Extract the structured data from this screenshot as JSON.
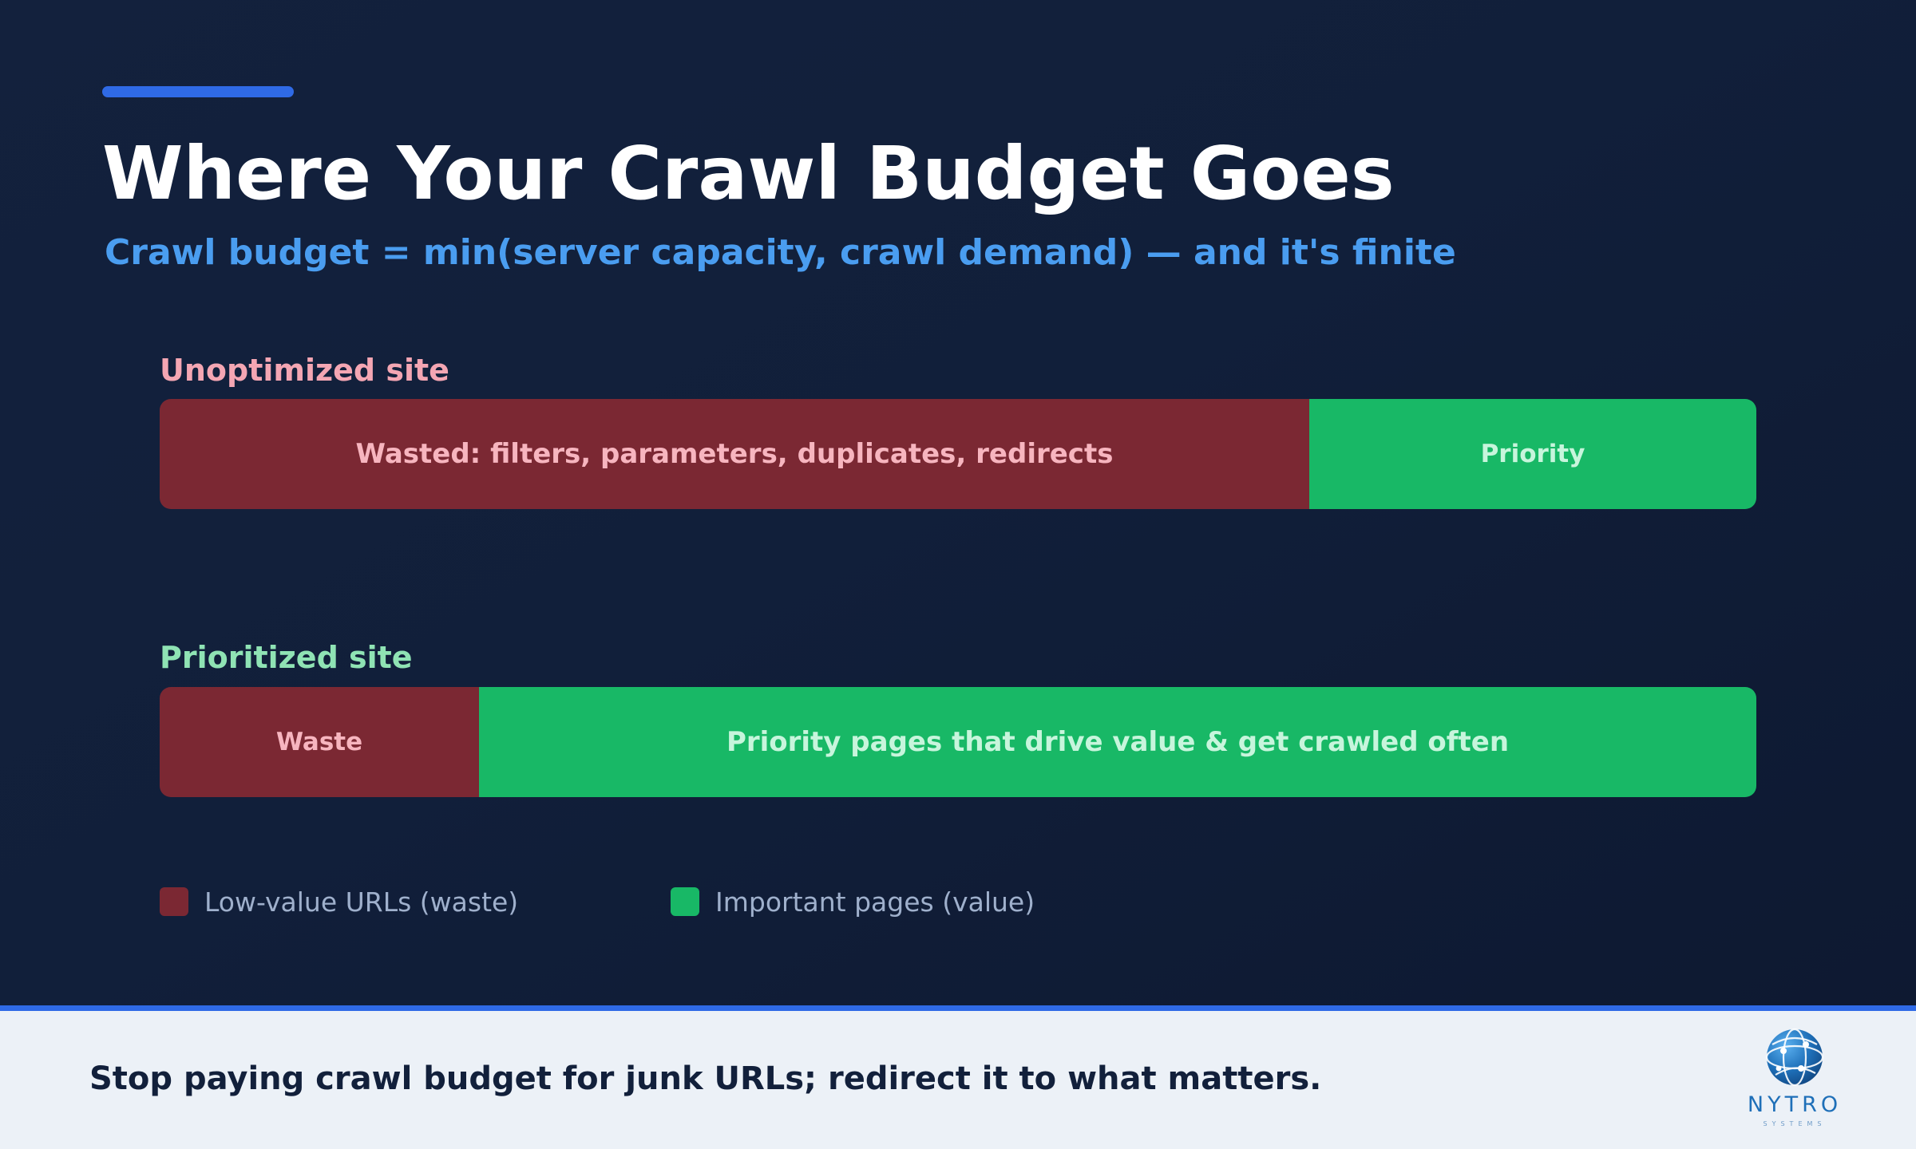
{
  "header": {
    "title": "Where Your Crawl Budget Goes",
    "subtitle": "Crawl budget = min(server capacity, crawl demand) — and it's finite"
  },
  "chart_data": {
    "type": "bar",
    "orientation": "horizontal-stacked-100",
    "categories": [
      "Unoptimized site",
      "Prioritized site"
    ],
    "series": [
      {
        "name": "Low-value URLs (waste)",
        "values": [
          72,
          20
        ],
        "segment_labels": [
          "Wasted: filters, parameters, duplicates, redirects",
          "Waste"
        ]
      },
      {
        "name": "Important pages (value)",
        "values": [
          28,
          80
        ],
        "segment_labels": [
          "Priority",
          "Priority pages that drive value & get crawled often"
        ]
      }
    ],
    "legend_position": "bottom-left",
    "grid": false
  },
  "legend": {
    "items": [
      {
        "label": "Low-value URLs (waste)"
      },
      {
        "label": "Important pages (value)"
      }
    ]
  },
  "footer": {
    "text": "Stop paying crawl budget for junk URLs; redirect it to what matters.",
    "logo_name": "NYTRO",
    "logo_sub": "SYSTEMS"
  },
  "colors": {
    "background": "#111f3a",
    "accent": "#2f6ae6",
    "subtitle": "#4a9df0",
    "waste": "#7b2833",
    "value": "#18b866",
    "waste_label_text": "#f7b5bf",
    "value_label_text": "#c7f5dc",
    "unoptimized_heading": "#f4a6b3",
    "prioritized_heading": "#8fe3b4",
    "footer_bg": "#ecf1f7",
    "logo": "#1e6fb8"
  }
}
